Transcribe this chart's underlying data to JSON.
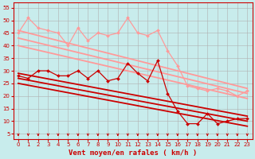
{
  "background_color": "#c8ecec",
  "grid_color": "#b0b0b0",
  "xlabel": "Vent moyen/en rafales ( km/h )",
  "x_ticks": [
    0,
    1,
    2,
    3,
    4,
    5,
    6,
    7,
    8,
    9,
    10,
    11,
    12,
    13,
    14,
    15,
    16,
    17,
    18,
    19,
    20,
    21,
    22,
    23
  ],
  "ylim": [
    3,
    57
  ],
  "yticks": [
    5,
    10,
    15,
    20,
    25,
    30,
    35,
    40,
    45,
    50,
    55
  ],
  "xlim": [
    -0.5,
    23.5
  ],
  "series": [
    {
      "name": "rafales_high",
      "color": "#ff9999",
      "lw": 0.9,
      "marker": "D",
      "ms": 2.0,
      "x": [
        0,
        1,
        2,
        3,
        4,
        5,
        6,
        7,
        8,
        9,
        10,
        11,
        12,
        13,
        14,
        15,
        16,
        17,
        18,
        19,
        20,
        21,
        22,
        23
      ],
      "y": [
        45,
        51,
        47,
        46,
        45,
        40,
        47,
        42,
        45,
        44,
        45,
        51,
        45,
        44,
        46,
        38,
        32,
        24,
        23,
        22,
        23,
        22,
        20,
        22
      ]
    },
    {
      "name": "trend_high1",
      "color": "#ff9999",
      "lw": 1.3,
      "marker": null,
      "ms": 0,
      "x": [
        0,
        23
      ],
      "y": [
        46,
        23
      ]
    },
    {
      "name": "trend_high2",
      "color": "#ff9999",
      "lw": 1.3,
      "marker": null,
      "ms": 0,
      "x": [
        0,
        23
      ],
      "y": [
        43,
        21
      ]
    },
    {
      "name": "trend_high3",
      "color": "#ff9999",
      "lw": 1.3,
      "marker": null,
      "ms": 0,
      "x": [
        0,
        23
      ],
      "y": [
        40,
        19
      ]
    },
    {
      "name": "moyen_series",
      "color": "#cc0000",
      "lw": 0.9,
      "marker": "D",
      "ms": 2.0,
      "x": [
        0,
        1,
        2,
        3,
        4,
        5,
        6,
        7,
        8,
        9,
        10,
        11,
        12,
        13,
        14,
        15,
        16,
        17,
        18,
        19,
        20,
        21,
        22,
        23
      ],
      "y": [
        28,
        27,
        30,
        30,
        28,
        28,
        30,
        27,
        30,
        26,
        27,
        33,
        29,
        26,
        34,
        21,
        14,
        9,
        9,
        13,
        9,
        10,
        11,
        11
      ]
    },
    {
      "name": "trend_low1",
      "color": "#cc0000",
      "lw": 1.3,
      "marker": null,
      "ms": 0,
      "x": [
        0,
        23
      ],
      "y": [
        29,
        12
      ]
    },
    {
      "name": "trend_low2",
      "color": "#cc0000",
      "lw": 1.3,
      "marker": null,
      "ms": 0,
      "x": [
        0,
        23
      ],
      "y": [
        27,
        10
      ]
    },
    {
      "name": "trend_low3",
      "color": "#cc0000",
      "lw": 1.3,
      "marker": null,
      "ms": 0,
      "x": [
        0,
        23
      ],
      "y": [
        25,
        8
      ]
    }
  ],
  "arrow_color": "#cc0000",
  "xlabel_color": "#cc0000",
  "xlabel_fontsize": 6.5,
  "tick_fontsize": 5.0,
  "spine_color": "#cc0000"
}
